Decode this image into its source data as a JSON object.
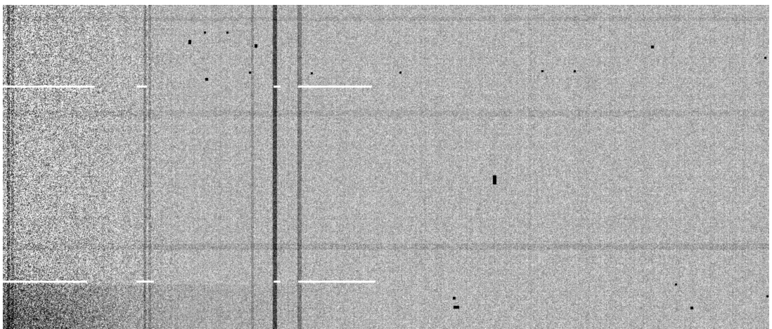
{
  "image": {
    "subject": "grayscale-astronomical-frame",
    "palette": {
      "background": "#ffffff",
      "mid_gray": "#b4b4b4",
      "dark": "#000000",
      "light": "#ffffff"
    }
  }
}
